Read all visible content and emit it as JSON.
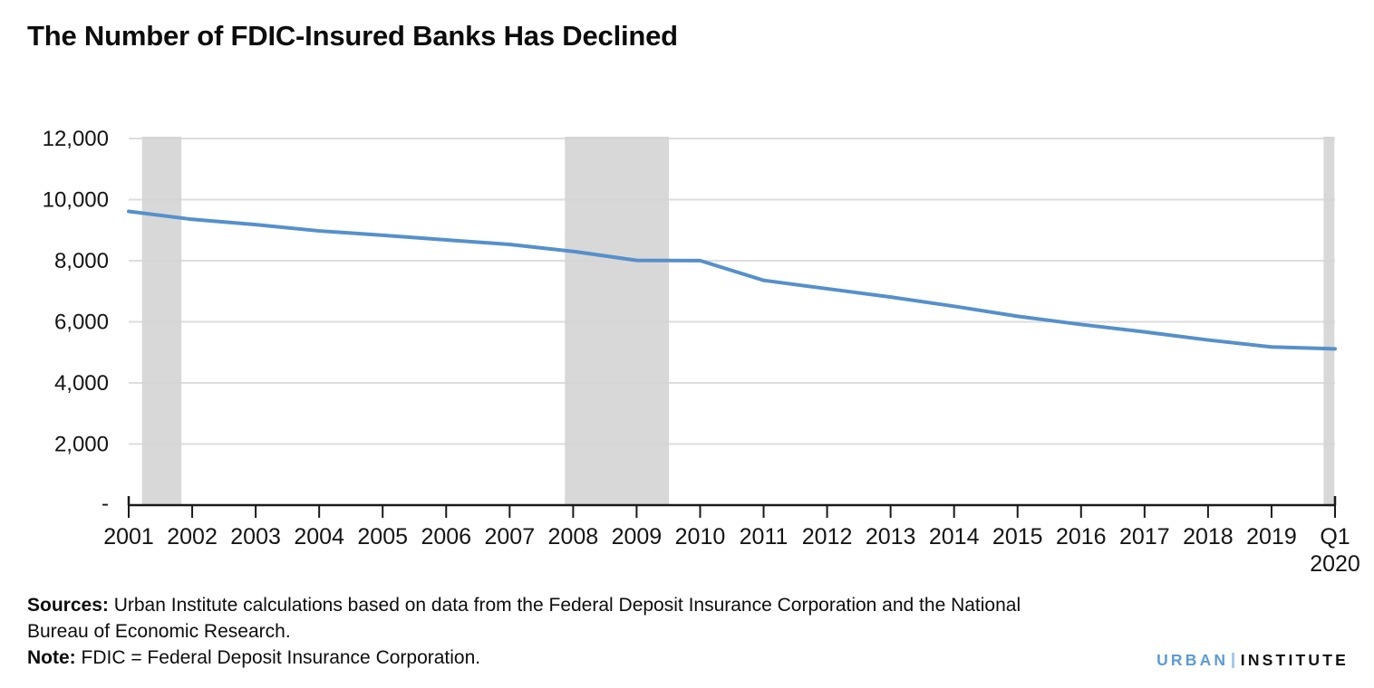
{
  "chart_data": {
    "type": "line",
    "title": "The Number of FDIC-Insured Banks Has Declined",
    "categories": [
      "2001",
      "2002",
      "2003",
      "2004",
      "2005",
      "2006",
      "2007",
      "2008",
      "2009",
      "2010",
      "2011",
      "2012",
      "2013",
      "2014",
      "2015",
      "2016",
      "2017",
      "2018",
      "2019",
      "Q1 2020"
    ],
    "series": [
      {
        "name": "Number of FDIC-insured banks",
        "values": [
          9614,
          9354,
          9181,
          8976,
          8833,
          8680,
          8534,
          8305,
          8012,
          8004,
          7357,
          7083,
          6812,
          6509,
          6182,
          5913,
          5670,
          5406,
          5177,
          5116
        ]
      }
    ],
    "xlabel": "",
    "ylabel": "",
    "ylim": [
      0,
      12000
    ],
    "y_tick_values": [
      0,
      2000,
      4000,
      6000,
      8000,
      10000,
      12000
    ],
    "y_tick_labels": [
      "-",
      "2,000",
      "4,000",
      "6,000",
      "8,000",
      "10,000",
      "12,000"
    ],
    "grid": true,
    "legend": false,
    "annotations": "Gray vertical bands mark recession periods (2001, 2007-09, early 2020)",
    "recession_bands": [
      {
        "from_index": 0.21,
        "to_index": 0.83
      },
      {
        "from_index": 6.87,
        "to_index": 8.51
      },
      {
        "from_index": 18.82,
        "to_index": 18.99
      }
    ],
    "colors": {
      "line": "#5590CB",
      "band": "#D4D4D4",
      "grid": "#DDDDDD",
      "axis": "#1A1A1A",
      "text": "#141414"
    }
  },
  "footer": {
    "sources_label": "Sources:",
    "sources_line1": " Urban Institute calculations based on data from the Federal Deposit Insurance Corporation and the National",
    "sources_line2": "Bureau of Economic Research.",
    "note_label": "Note:",
    "note_text": " FDIC = Federal Deposit Insurance Corporation."
  },
  "logo": {
    "urban": "URBAN",
    "institute": "INSTITUTE",
    "urban_color": "#5C9BD4",
    "institute_color": "#131313",
    "separator_color": "#A6C9E8"
  }
}
